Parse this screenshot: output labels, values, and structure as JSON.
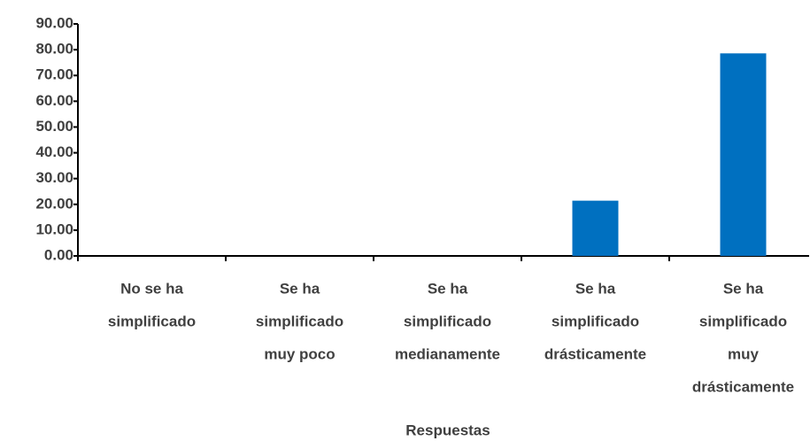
{
  "chart_data": {
    "type": "bar",
    "x_label": "Respuestas",
    "categories": [
      [
        "No se ha",
        "simplificado"
      ],
      [
        "Se ha",
        "simplificado",
        "muy poco"
      ],
      [
        "Se ha",
        "simplificado",
        "medianamente"
      ],
      [
        "Se ha",
        "simplificado",
        "drásticamente"
      ],
      [
        "Se ha",
        "simplificado",
        "muy",
        "drásticamente"
      ]
    ],
    "values": [
      0,
      0,
      0,
      21.43,
      78.57
    ],
    "color": "#0070c0",
    "ylim": [
      0,
      90
    ],
    "yticks": [
      {
        "value": 0,
        "label": "0.00"
      },
      {
        "value": 10,
        "label": "10.00"
      },
      {
        "value": 20,
        "label": "20.00"
      },
      {
        "value": 30,
        "label": "30.00"
      },
      {
        "value": 40,
        "label": "40.00"
      },
      {
        "value": 50,
        "label": "50.00"
      },
      {
        "value": 60,
        "label": "60.00"
      },
      {
        "value": 70,
        "label": "70.00"
      },
      {
        "value": 80,
        "label": "80.00"
      },
      {
        "value": 90,
        "label": "90.00"
      }
    ],
    "grid": false
  }
}
